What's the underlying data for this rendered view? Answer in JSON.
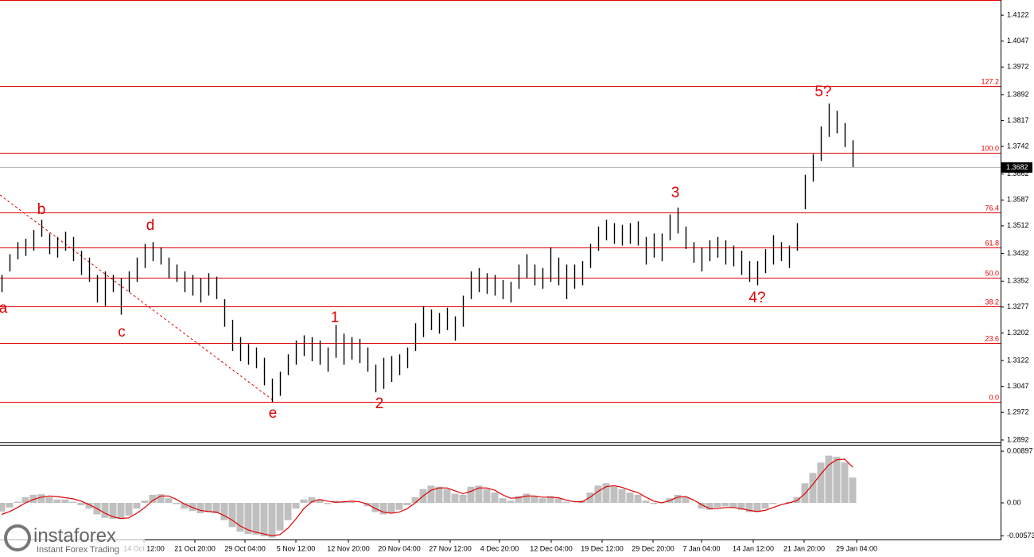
{
  "chart_data": {
    "type": "ohlc",
    "high": [
      1.337,
      1.343,
      1.3465,
      1.3475,
      1.35,
      1.353,
      1.349,
      1.348,
      1.3495,
      1.348,
      1.344,
      1.342,
      1.337,
      1.338,
      1.337,
      1.336,
      1.338,
      1.342,
      1.346,
      1.3465,
      1.345,
      1.342,
      1.34,
      1.338,
      1.337,
      1.336,
      1.3375,
      1.3365,
      1.33,
      1.324,
      1.319,
      1.317,
      1.316,
      1.313,
      1.307,
      1.309,
      1.314,
      1.318,
      1.3195,
      1.319,
      1.318,
      1.316,
      1.3225,
      1.32,
      1.319,
      1.3185,
      1.316,
      1.311,
      1.313,
      1.3135,
      1.314,
      1.316,
      1.323,
      1.328,
      1.327,
      1.326,
      1.3275,
      1.325,
      1.331,
      1.338,
      1.339,
      1.3375,
      1.337,
      1.3355,
      1.335,
      1.34,
      1.343,
      1.34,
      1.339,
      1.345,
      1.342,
      1.34,
      1.34,
      1.341,
      1.346,
      1.351,
      1.353,
      1.352,
      1.3515,
      1.352,
      1.3525,
      1.348,
      1.349,
      1.349,
      1.3545,
      1.3565,
      1.351,
      1.3465,
      1.345,
      1.347,
      1.348,
      1.347,
      1.3455,
      1.344,
      1.341,
      1.341,
      1.3445,
      1.3485,
      1.3465,
      1.3455,
      1.352,
      1.366,
      1.372,
      1.38,
      1.3866,
      1.3845,
      1.381,
      1.376
    ],
    "low": [
      1.332,
      1.338,
      1.3415,
      1.3425,
      1.344,
      1.348,
      1.343,
      1.342,
      1.344,
      1.341,
      1.337,
      1.335,
      1.329,
      1.328,
      1.332,
      1.3255,
      1.332,
      1.335,
      1.339,
      1.341,
      1.34,
      1.336,
      1.335,
      1.332,
      1.331,
      1.329,
      1.331,
      1.33,
      1.322,
      1.315,
      1.312,
      1.311,
      1.31,
      1.305,
      1.3002,
      1.302,
      1.308,
      1.311,
      1.3135,
      1.312,
      1.311,
      1.309,
      1.313,
      1.311,
      1.3125,
      1.3115,
      1.309,
      1.303,
      1.304,
      1.306,
      1.308,
      1.31,
      1.315,
      1.319,
      1.321,
      1.32,
      1.321,
      1.318,
      1.322,
      1.33,
      1.332,
      1.3315,
      1.331,
      1.33,
      1.329,
      1.333,
      1.336,
      1.334,
      1.333,
      1.335,
      1.334,
      1.33,
      1.333,
      1.334,
      1.339,
      1.344,
      1.347,
      1.346,
      1.3455,
      1.346,
      1.3455,
      1.34,
      1.342,
      1.341,
      1.347,
      1.349,
      1.3445,
      1.3405,
      1.338,
      1.341,
      1.342,
      1.34,
      1.3395,
      1.337,
      1.335,
      1.334,
      1.3375,
      1.34,
      1.341,
      1.339,
      1.344,
      1.356,
      1.364,
      1.37,
      1.377,
      1.378,
      1.374,
      1.3682
    ],
    "xlim": [
      -0.2,
      125.6
    ],
    "xticks": [
      {
        "value": 17.9,
        "label": "14 Oct 12:00"
      },
      {
        "value": 24.3,
        "label": "21 Oct 20:00"
      },
      {
        "value": 30.6,
        "label": "29 Oct 04:00"
      },
      {
        "value": 37,
        "label": "5 Nov 12:00"
      },
      {
        "value": 43.6,
        "label": "12 Nov 20:00"
      },
      {
        "value": 50,
        "label": "20 Nov 04:00"
      },
      {
        "value": 56.4,
        "label": "27 Nov 12:00"
      },
      {
        "value": 62.6,
        "label": "4 Dec 20:00"
      },
      {
        "value": 69.1,
        "label": "12 Dec 04:00"
      },
      {
        "value": 75.5,
        "label": "19 Dec 12:00"
      },
      {
        "value": 81.9,
        "label": "29 Dec 20:00"
      },
      {
        "value": 88,
        "label": "7 Jan 04:00"
      },
      {
        "value": 94.5,
        "label": "14 Jan 12:00"
      },
      {
        "value": 100.9,
        "label": "21 Jan 20:00"
      },
      {
        "value": 107.5,
        "label": "29 Jan 04:00"
      }
    ],
    "ylim": [
      1.2885,
      1.4166
    ],
    "yticks": [
      1.4122,
      1.4047,
      1.3972,
      1.3892,
      1.3817,
      1.3742,
      1.3662,
      1.3587,
      1.3512,
      1.3432,
      1.3352,
      1.3277,
      1.3202,
      1.3122,
      1.3047,
      1.2972,
      1.2892
    ],
    "levels": [
      {
        "value": 1.3917,
        "label": "127.2"
      },
      {
        "value": 1.3724,
        "label": "100.0"
      },
      {
        "value": 1.3551,
        "label": "76.4"
      },
      {
        "value": 1.3449,
        "label": "61.8"
      },
      {
        "value": 1.3362,
        "label": "50.0"
      },
      {
        "value": 1.3279,
        "label": "38.2"
      },
      {
        "value": 1.3173,
        "label": "23.6"
      },
      {
        "value": 1.3002,
        "label": "0.0"
      }
    ],
    "current_price": 1.3682,
    "annotations": [
      "a",
      "b",
      "c",
      "d",
      "e",
      "1",
      "2",
      "3",
      "4?",
      "5?"
    ],
    "indicator": {
      "histogram": [
        -0.0015,
        -0.0008,
        0.0002,
        0.001,
        0.0014,
        0.0015,
        0.001,
        0.0006,
        0.0006,
        0.0002,
        -0.0004,
        -0.001,
        -0.002,
        -0.0026,
        -0.0028,
        -0.003,
        -0.0022,
        -0.001,
        0.0004,
        0.0014,
        0.0015,
        0.0008,
        -0.0002,
        -0.001,
        -0.0014,
        -0.0018,
        -0.0016,
        -0.0018,
        -0.003,
        -0.0042,
        -0.005,
        -0.0054,
        -0.0055,
        -0.0058,
        -0.006,
        -0.0048,
        -0.003,
        -0.001,
        0.0006,
        0.001,
        0.0006,
        -0.0002,
        0.0004,
        0.0002,
        0.0003,
        0.0,
        -0.0006,
        -0.0016,
        -0.002,
        -0.0018,
        -0.0012,
        -0.0004,
        0.001,
        0.0024,
        0.003,
        0.0028,
        0.0024,
        0.0016,
        0.0014,
        0.0028,
        0.003,
        0.0024,
        0.0018,
        0.0008,
        0.0004,
        0.0012,
        0.0016,
        0.0012,
        0.0008,
        0.0012,
        0.0008,
        0.0002,
        0.0,
        0.0004,
        0.0018,
        0.003,
        0.0034,
        0.003,
        0.0024,
        0.0018,
        0.0014,
        0.0004,
        -0.0002,
        0.0,
        0.0008,
        0.0014,
        0.001,
        0.0,
        -0.001,
        -0.0012,
        -0.0008,
        -0.0006,
        -0.0008,
        -0.0012,
        -0.0016,
        -0.0016,
        -0.001,
        -0.0002,
        0.0,
        0.0002,
        0.001,
        0.0034,
        0.0052,
        0.007,
        0.0082,
        0.008,
        0.007,
        0.0044
      ],
      "signal": [
        -0.002,
        -0.0015,
        -0.0008,
        0.0,
        0.0006,
        0.001,
        0.0012,
        0.0011,
        0.0009,
        0.0007,
        0.0003,
        -0.0003,
        -0.001,
        -0.0018,
        -0.0024,
        -0.0027,
        -0.0026,
        -0.0018,
        -0.0008,
        0.0004,
        0.0012,
        0.0012,
        0.0006,
        -0.0002,
        -0.0008,
        -0.0013,
        -0.0015,
        -0.0016,
        -0.0022,
        -0.003,
        -0.004,
        -0.0047,
        -0.0051,
        -0.0054,
        -0.0057,
        -0.0055,
        -0.0044,
        -0.0028,
        -0.001,
        0.0002,
        0.0006,
        0.0003,
        0.0001,
        0.0002,
        0.0003,
        0.0002,
        -0.0002,
        -0.001,
        -0.0016,
        -0.0018,
        -0.0016,
        -0.001,
        0.0,
        0.0012,
        0.0022,
        0.0026,
        0.0026,
        0.0021,
        0.0016,
        0.002,
        0.0026,
        0.0026,
        0.0022,
        0.0014,
        0.0008,
        0.0009,
        0.0012,
        0.0012,
        0.001,
        0.001,
        0.0009,
        0.0005,
        0.0002,
        0.0002,
        0.001,
        0.002,
        0.0028,
        0.003,
        0.0027,
        0.0022,
        0.0018,
        0.001,
        0.0003,
        0.0,
        0.0004,
        0.001,
        0.0011,
        0.0005,
        -0.0003,
        -0.001,
        -0.001,
        -0.0008,
        -0.0008,
        -0.001,
        -0.0013,
        -0.0015,
        -0.0013,
        -0.0008,
        -0.0003,
        0.0,
        0.0004,
        0.0016,
        0.0032,
        0.005,
        0.0066,
        0.0075,
        0.0076,
        0.0062
      ],
      "ylim": [
        -0.00635,
        0.00994
      ],
      "yticks": [
        0.00897,
        {
          "value": 0,
          "label": "0.00"
        },
        -0.00573
      ]
    },
    "watermark": {
      "brand": "instaforex",
      "tagline": "Instant Forex Trading"
    }
  }
}
